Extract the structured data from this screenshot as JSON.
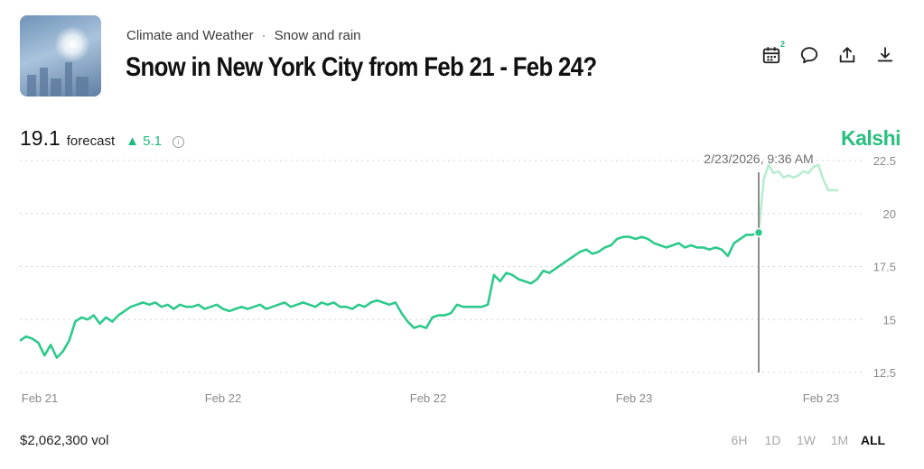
{
  "breadcrumb": {
    "category": "Climate and Weather",
    "separator": "·",
    "subcategory": "Snow and rain"
  },
  "title": "Snow in New York City from Feb 21 - Feb 24?",
  "toolbar": {
    "calendar_badge": "2",
    "icons": [
      "calendar-icon",
      "comment-icon",
      "share-icon",
      "download-icon"
    ]
  },
  "stat": {
    "value": "19.1",
    "label": "forecast",
    "change": "▲ 5.1"
  },
  "brand": "Kalshi",
  "colors": {
    "accent": "#28c07f",
    "line": "#2ec98c",
    "line_faded": "#b8ecd3"
  },
  "chart_data": {
    "type": "line",
    "x_labels": [
      "Feb 21",
      "Feb 22",
      "Feb 22",
      "Feb 23",
      "Feb 23"
    ],
    "y_ticks": [
      "22.5",
      "20",
      "17.5",
      "15",
      "12.5"
    ],
    "ylim": [
      12.5,
      22.5
    ],
    "grid": true,
    "hover": {
      "label": "2/23/2026, 9:36 AM",
      "value": 19.1
    },
    "series": [
      {
        "values": [
          14.0,
          14.2,
          14.1,
          13.9,
          13.3,
          13.8,
          13.2,
          13.5,
          14.0,
          14.9,
          15.1,
          15.0,
          15.2,
          14.8,
          15.1,
          14.9,
          15.2,
          15.4,
          15.6,
          15.7,
          15.8,
          15.7,
          15.8,
          15.6,
          15.7,
          15.5,
          15.7,
          15.6,
          15.6,
          15.7,
          15.5,
          15.6,
          15.7,
          15.5,
          15.4,
          15.5,
          15.6,
          15.5,
          15.6,
          15.7,
          15.5,
          15.6,
          15.7,
          15.8,
          15.6,
          15.7,
          15.8,
          15.7,
          15.6,
          15.8,
          15.7,
          15.8,
          15.6,
          15.6,
          15.5,
          15.7,
          15.6,
          15.8,
          15.9,
          15.8,
          15.7,
          15.8,
          15.3,
          14.9,
          14.6,
          14.7,
          14.6,
          15.1,
          15.2,
          15.2,
          15.3,
          15.7,
          15.6,
          15.6,
          15.6,
          15.6,
          15.7,
          17.1,
          16.8,
          17.2,
          17.1,
          16.9,
          16.8,
          16.7,
          16.9,
          17.3,
          17.2,
          17.4,
          17.6,
          17.8,
          18.0,
          18.2,
          18.3,
          18.1,
          18.2,
          18.4,
          18.5,
          18.8,
          18.9,
          18.9,
          18.8,
          18.9,
          18.8,
          18.6,
          18.5,
          18.4,
          18.5,
          18.6,
          18.4,
          18.5,
          18.4,
          18.4,
          18.3,
          18.4,
          18.3,
          18.0,
          18.6,
          18.8,
          19.0,
          19.0,
          19.1
        ]
      },
      {
        "values": [
          19.1,
          21.6,
          22.3,
          21.9,
          22.0,
          21.7,
          21.8,
          21.7,
          21.8,
          22.0,
          21.9,
          22.2,
          22.3,
          21.6,
          21.1,
          21.1,
          21.1
        ]
      }
    ]
  },
  "footer": {
    "volume": "$2,062,300 vol",
    "ranges": [
      {
        "label": "6H",
        "active": false
      },
      {
        "label": "1D",
        "active": false
      },
      {
        "label": "1W",
        "active": false
      },
      {
        "label": "1M",
        "active": false
      },
      {
        "label": "ALL",
        "active": true
      }
    ]
  }
}
